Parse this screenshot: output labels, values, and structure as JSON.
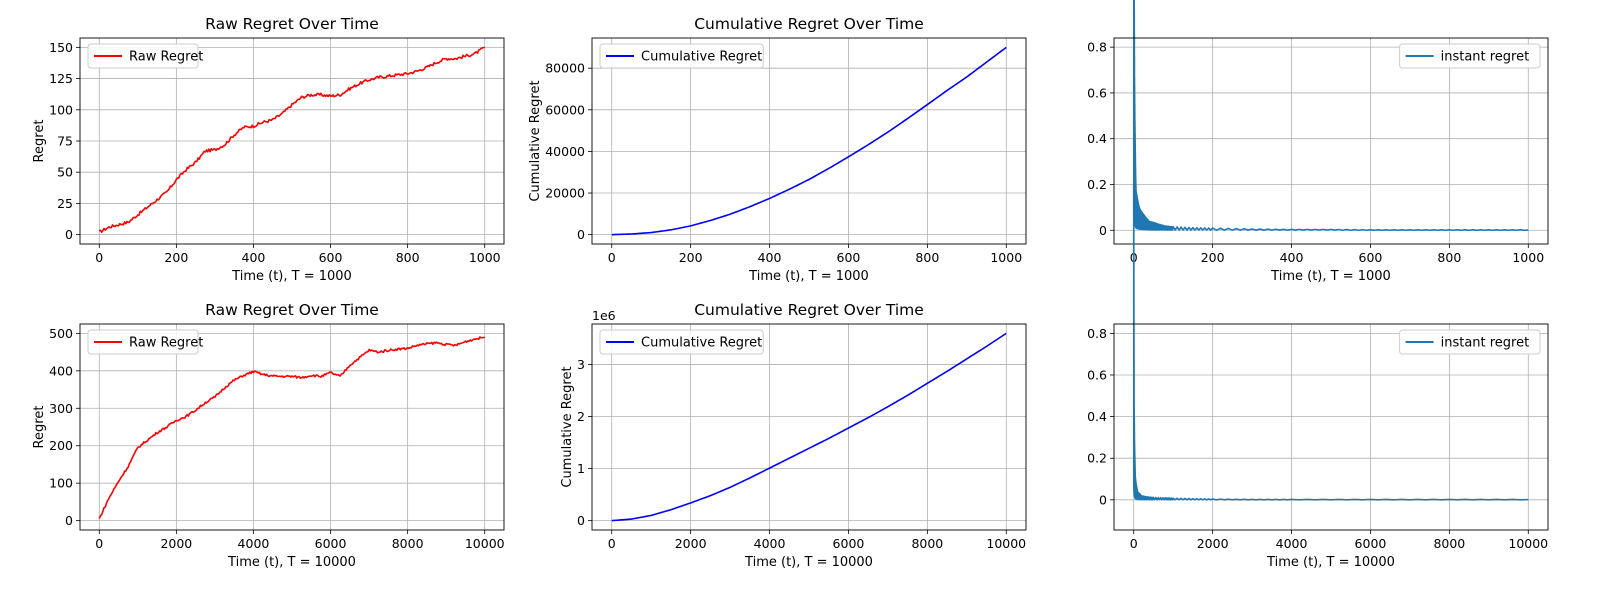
{
  "chart_data": [
    {
      "type": "line",
      "title": "Raw Regret Over Time",
      "xlabel": "Time (t), T = 1000",
      "ylabel": "Regret",
      "xlim": [
        -50,
        1050
      ],
      "ylim": [
        -7.5,
        157.5
      ],
      "xticks": [
        0,
        200,
        400,
        600,
        800,
        1000
      ],
      "yticks": [
        0,
        25,
        50,
        75,
        100,
        125,
        150
      ],
      "grid": true,
      "legend": "upper left",
      "exponent_label": "",
      "series": [
        {
          "name": "Raw Regret",
          "color": "#ff0000",
          "noise": 1.2,
          "x": [
            0,
            25,
            50,
            75,
            100,
            125,
            150,
            175,
            200,
            225,
            250,
            275,
            300,
            325,
            350,
            375,
            400,
            425,
            450,
            475,
            500,
            525,
            550,
            575,
            600,
            625,
            650,
            675,
            700,
            725,
            750,
            775,
            800,
            825,
            850,
            875,
            900,
            925,
            950,
            975,
            1000
          ],
          "y": [
            2,
            6,
            8,
            10,
            16,
            22,
            28,
            34,
            44,
            52,
            58,
            67,
            68,
            72,
            80,
            86,
            87,
            90,
            92,
            97,
            104,
            110,
            112,
            112,
            111,
            112,
            117,
            121,
            124,
            126,
            127,
            128,
            129,
            131,
            134,
            138,
            141,
            141,
            143,
            145,
            150
          ]
        }
      ]
    },
    {
      "type": "line",
      "title": "Cumulative Regret Over Time",
      "xlabel": "Time (t), T = 1000",
      "ylabel": "Cumulative Regret",
      "xlim": [
        -50,
        1050
      ],
      "ylim": [
        -4500,
        94500
      ],
      "xticks": [
        0,
        200,
        400,
        600,
        800,
        1000
      ],
      "yticks": [
        0,
        20000,
        40000,
        60000,
        80000
      ],
      "grid": true,
      "legend": "upper left",
      "exponent_label": "",
      "series": [
        {
          "name": "Cumulative Regret",
          "color": "#0000ff",
          "noise": 0,
          "x": [
            0,
            50,
            100,
            150,
            200,
            250,
            300,
            350,
            400,
            450,
            500,
            550,
            600,
            650,
            700,
            750,
            800,
            850,
            900,
            950,
            1000
          ],
          "y": [
            0,
            300,
            1000,
            2300,
            4200,
            6800,
            9800,
            13400,
            17400,
            21800,
            26500,
            31800,
            37400,
            43200,
            49300,
            55800,
            62500,
            69300,
            75800,
            82900,
            90000
          ]
        }
      ]
    },
    {
      "type": "line",
      "title": "",
      "xlabel": "Time (t), T = 1000",
      "ylabel": "",
      "xlim": [
        -50,
        1050
      ],
      "ylim": [
        -0.06,
        0.84
      ],
      "xticks": [
        0,
        200,
        400,
        600,
        800,
        1000
      ],
      "yticks": [
        0.0,
        0.2,
        0.4,
        0.6,
        0.8
      ],
      "grid": true,
      "legend": "upper right",
      "exponent_label": "",
      "series": [
        {
          "name": "instant regret",
          "color": "#1f77b4",
          "noise": 0,
          "oscillate": true,
          "x": [
            0,
            1,
            2,
            3,
            4,
            5,
            6,
            8,
            10,
            12,
            15,
            18,
            22,
            26,
            30,
            40,
            50,
            60,
            80,
            100,
            150,
            200,
            300,
            400,
            500,
            600,
            700,
            800,
            900,
            1000
          ],
          "y": [
            0.8,
            0.6,
            0.35,
            0.25,
            0.18,
            0.12,
            0.09,
            0.08,
            0.07,
            0.06,
            0.05,
            0.045,
            0.04,
            0.035,
            0.03,
            0.02,
            0.018,
            0.015,
            0.01,
            0.008,
            0.006,
            0.005,
            0.003,
            0.002,
            0.002,
            0.001,
            0.001,
            0.001,
            0.001,
            0.001
          ]
        }
      ]
    },
    {
      "type": "line",
      "title": "Raw Regret Over Time",
      "xlabel": "Time (t), T = 10000",
      "ylabel": "Regret",
      "xlim": [
        -500,
        10500
      ],
      "ylim": [
        -25,
        525
      ],
      "xticks": [
        0,
        2000,
        4000,
        6000,
        8000,
        10000
      ],
      "yticks": [
        0,
        100,
        200,
        300,
        400,
        500
      ],
      "grid": true,
      "legend": "upper left",
      "exponent_label": "",
      "series": [
        {
          "name": "Raw Regret",
          "color": "#ff0000",
          "noise": 3,
          "x": [
            0,
            250,
            500,
            750,
            1000,
            1250,
            1500,
            1750,
            2000,
            2250,
            2500,
            2750,
            3000,
            3250,
            3500,
            3750,
            4000,
            4250,
            4500,
            4750,
            5000,
            5250,
            5500,
            5750,
            6000,
            6250,
            6500,
            6750,
            7000,
            7250,
            7500,
            7750,
            8000,
            8250,
            8500,
            8750,
            9000,
            9250,
            9500,
            9750,
            10000
          ],
          "y": [
            5,
            60,
            105,
            145,
            195,
            215,
            235,
            250,
            268,
            278,
            295,
            315,
            330,
            355,
            375,
            388,
            398,
            390,
            386,
            385,
            385,
            382,
            388,
            385,
            395,
            385,
            415,
            435,
            455,
            450,
            455,
            458,
            460,
            468,
            472,
            475,
            470,
            468,
            478,
            485,
            490
          ]
        }
      ]
    },
    {
      "type": "line",
      "title": "Cumulative Regret Over Time",
      "xlabel": "Time (t), T = 10000",
      "ylabel": "Cumulative Regret",
      "xlim": [
        -500,
        10500
      ],
      "ylim": [
        -180000,
        3780000
      ],
      "xticks": [
        0,
        2000,
        4000,
        6000,
        8000,
        10000
      ],
      "yticks": [
        0,
        1000000,
        2000000,
        3000000
      ],
      "ytick_labels": [
        "0",
        "1",
        "2",
        "3"
      ],
      "grid": true,
      "legend": "upper left",
      "exponent_label": "1e6",
      "series": [
        {
          "name": "Cumulative Regret",
          "color": "#0000ff",
          "noise": 0,
          "x": [
            0,
            500,
            1000,
            1500,
            2000,
            2500,
            3000,
            3500,
            4000,
            4500,
            5000,
            5500,
            6000,
            6500,
            7000,
            7500,
            8000,
            8500,
            9000,
            9500,
            10000
          ],
          "y": [
            0,
            30000,
            100000,
            210000,
            340000,
            480000,
            640000,
            820000,
            1010000,
            1200000,
            1390000,
            1580000,
            1780000,
            1980000,
            2190000,
            2410000,
            2640000,
            2870000,
            3110000,
            3350000,
            3600000
          ]
        }
      ]
    },
    {
      "type": "line",
      "title": "",
      "xlabel": "Time (t), T = 10000",
      "ylabel": "",
      "xlim": [
        -500,
        10500
      ],
      "ylim": [
        -0.145,
        0.845
      ],
      "xticks": [
        0,
        2000,
        4000,
        6000,
        8000,
        10000
      ],
      "yticks": [
        0.0,
        0.2,
        0.4,
        0.6,
        0.8
      ],
      "grid": true,
      "legend": "upper right",
      "exponent_label": "",
      "series": [
        {
          "name": "instant regret",
          "color": "#1f77b4",
          "noise": 0,
          "oscillate": true,
          "x": [
            0,
            5,
            10,
            20,
            30,
            40,
            60,
            80,
            100,
            150,
            200,
            300,
            500,
            800,
            1000,
            1500,
            2000,
            3000,
            4000,
            6000,
            8000,
            10000
          ],
          "y": [
            0.8,
            0.5,
            0.25,
            0.15,
            0.1,
            0.06,
            0.04,
            0.03,
            0.02,
            0.015,
            0.01,
            0.008,
            0.006,
            0.005,
            0.004,
            0.003,
            0.002,
            0.001,
            0.001,
            0.001,
            0.001,
            0.001
          ]
        }
      ]
    }
  ]
}
